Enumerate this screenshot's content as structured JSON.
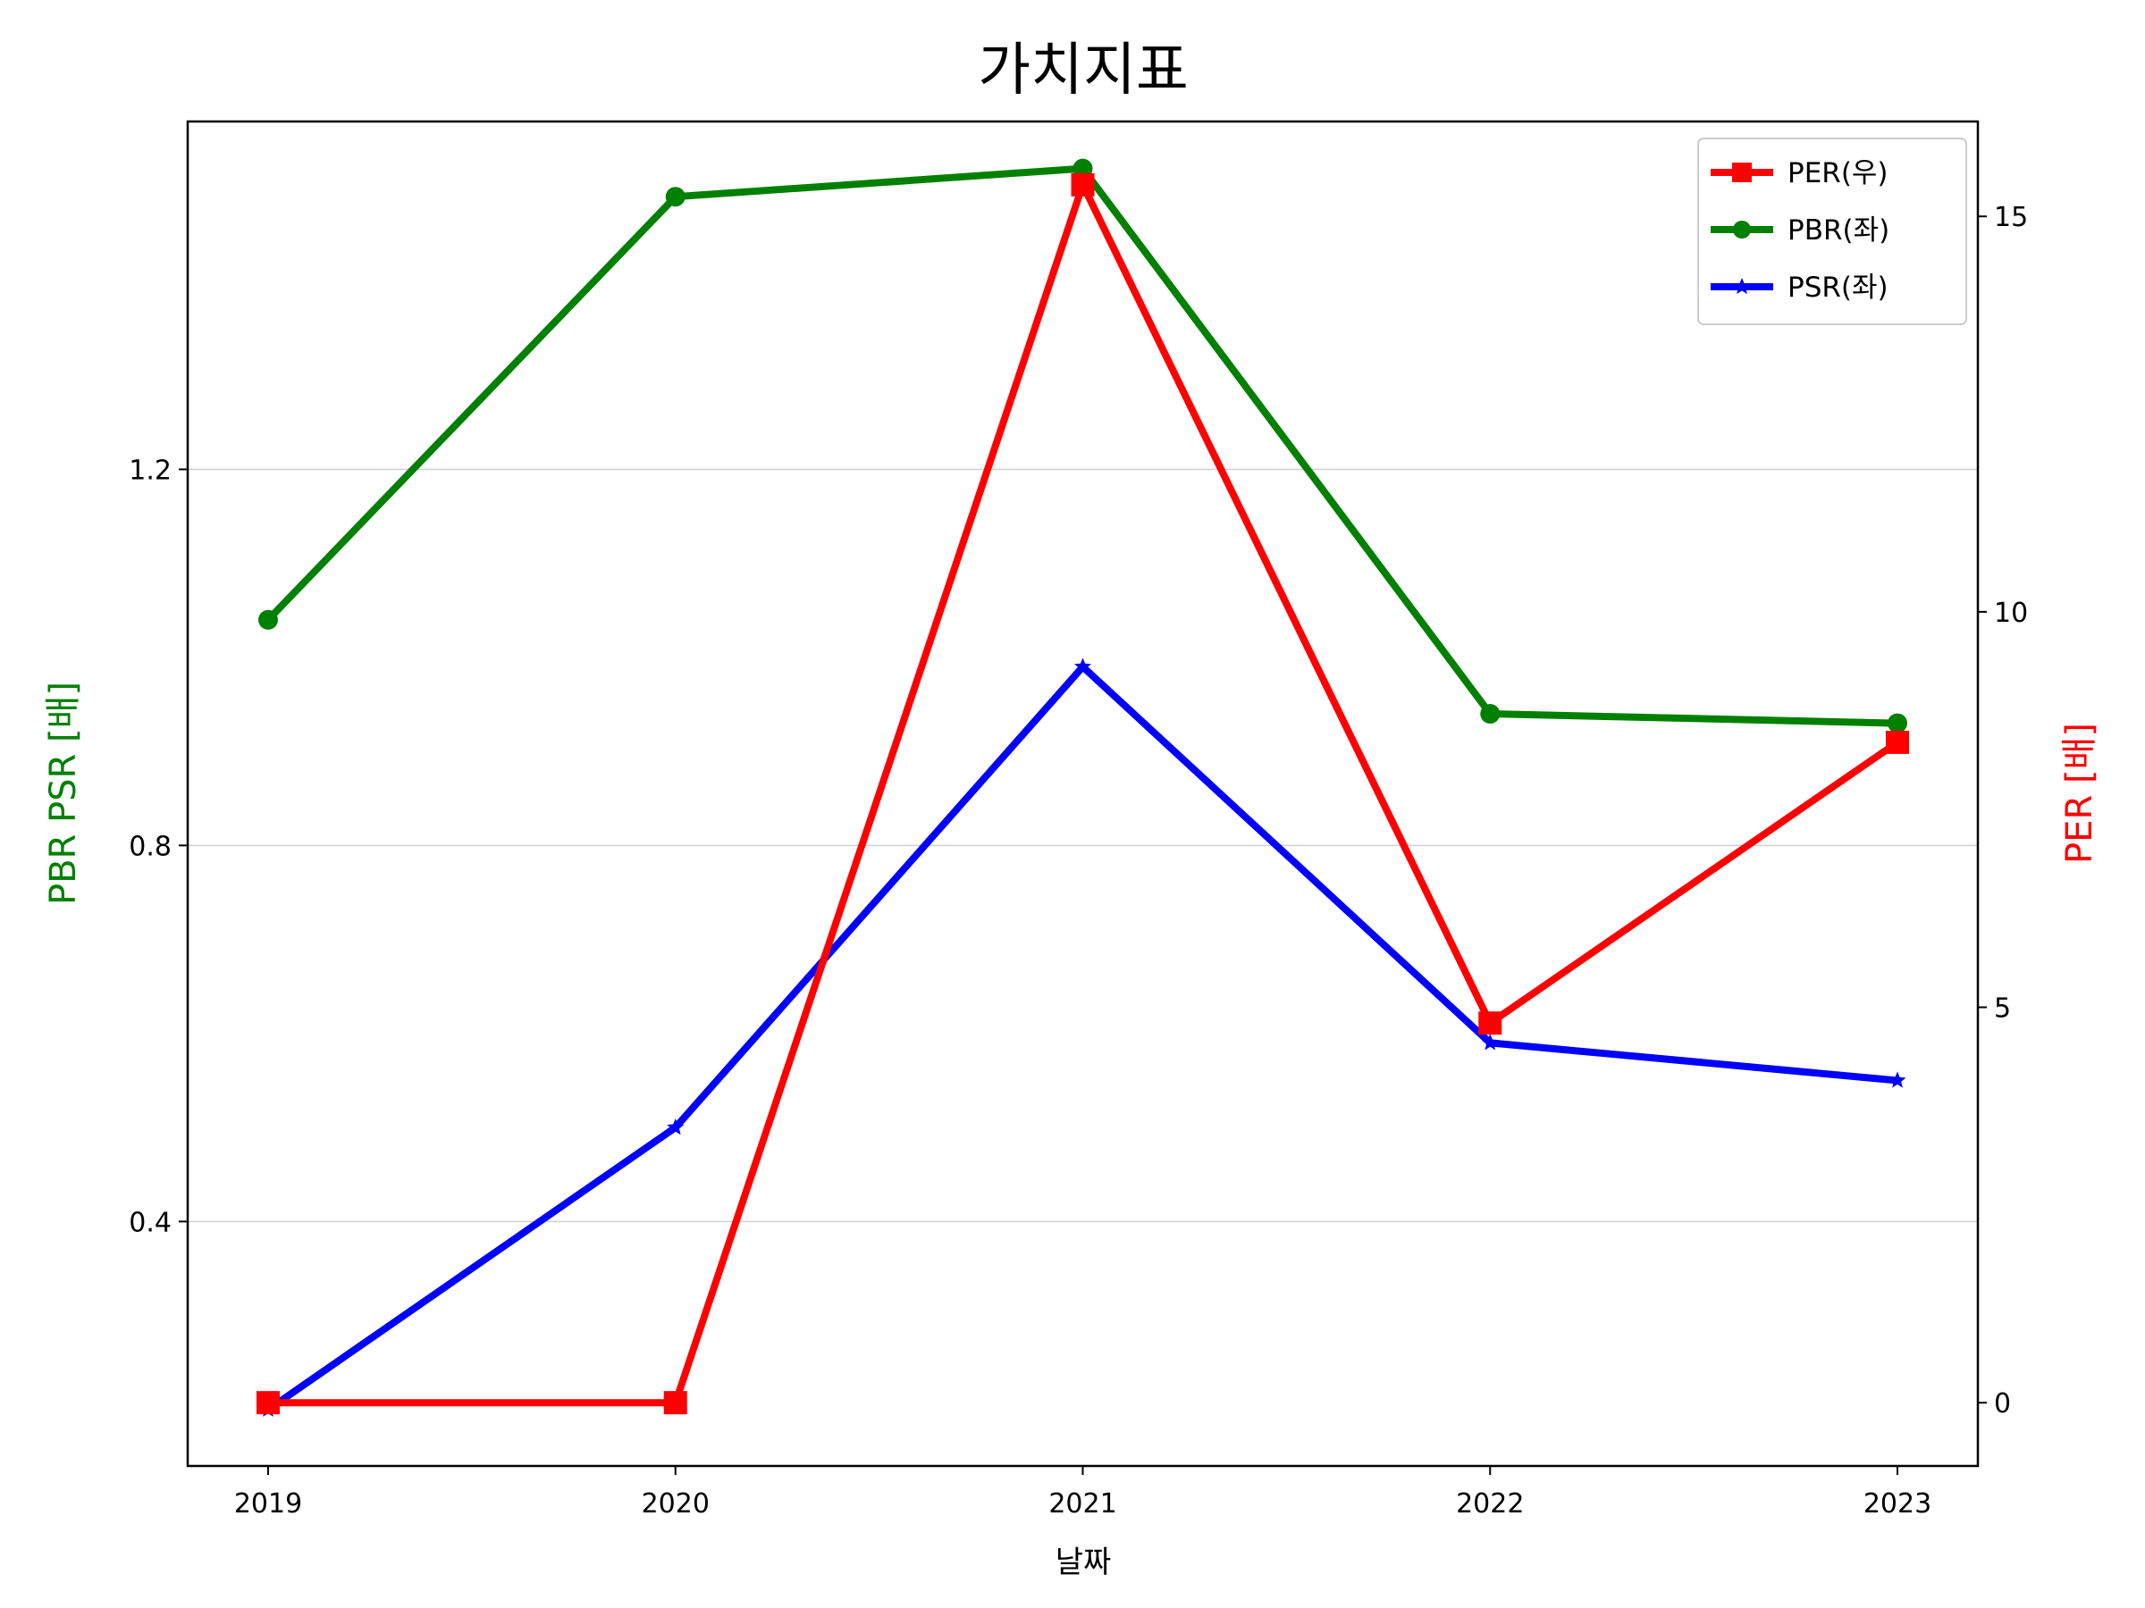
{
  "chart_data": {
    "type": "line",
    "title": "가치지표",
    "xlabel": "날짜",
    "ylabel_left": "PBR PSR [배]",
    "ylabel_right": "PER [배]",
    "categories": [
      "2019",
      "2020",
      "2021",
      "2022",
      "2023"
    ],
    "y_left": {
      "range": [
        0.14,
        1.57
      ],
      "ticks": [
        0.4,
        0.8,
        1.2
      ],
      "tick_labels": [
        "0.4",
        "0.8",
        "1.2"
      ],
      "color": "#008000"
    },
    "y_right": {
      "range": [
        -0.8,
        16.2
      ],
      "ticks": [
        0,
        5,
        10,
        15
      ],
      "tick_labels": [
        "0",
        "5",
        "10",
        "15"
      ],
      "color": "#ff0000"
    },
    "grid": "horizontal-left",
    "legend_position": "top-right",
    "series": [
      {
        "name": "PER(우)",
        "axis": "right",
        "color": "#ff0000",
        "marker": "square",
        "values": [
          0.0,
          0.0,
          15.4,
          4.8,
          8.35
        ]
      },
      {
        "name": "PBR(좌)",
        "axis": "left",
        "color": "#008000",
        "marker": "circle",
        "values": [
          1.04,
          1.49,
          1.52,
          0.94,
          0.93
        ]
      },
      {
        "name": "PSR(좌)",
        "axis": "left",
        "color": "#0000ff",
        "marker": "star",
        "values": [
          0.2,
          0.5,
          0.99,
          0.59,
          0.55
        ]
      }
    ]
  }
}
